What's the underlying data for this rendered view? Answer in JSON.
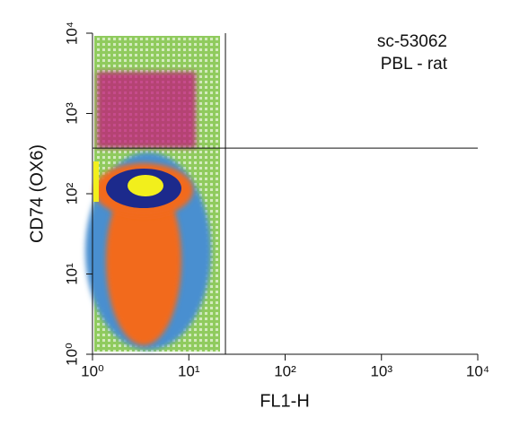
{
  "chart_data": {
    "type": "density",
    "annotations": [
      "sc-53062",
      "PBL - rat"
    ],
    "xlabel": "FL1-H",
    "ylabel": "CD74 (OX6)",
    "xscale": "log",
    "yscale": "log",
    "xlim": [
      1,
      10000
    ],
    "ylim": [
      1,
      10000
    ],
    "xticks": [
      {
        "value": 1,
        "label": "10⁰"
      },
      {
        "value": 10,
        "label": "10¹"
      },
      {
        "value": 100,
        "label": "10²"
      },
      {
        "value": 1000,
        "label": "10³"
      },
      {
        "value": 10000,
        "label": "10⁴"
      }
    ],
    "yticks": [
      {
        "value": 1,
        "label": "10⁰"
      },
      {
        "value": 10,
        "label": "10¹"
      },
      {
        "value": 100,
        "label": "10²"
      },
      {
        "value": 1000,
        "label": "10³"
      },
      {
        "value": 10000,
        "label": "10⁴"
      }
    ],
    "gate_x": 24,
    "gate_y": 370
  }
}
